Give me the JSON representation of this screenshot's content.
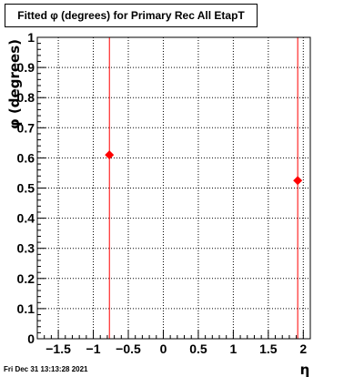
{
  "title": "Fitted φ (degrees) for Primary Rec All EtapT",
  "timestamp": "Fri Dec 31 13:13:28 2021",
  "chart_data": {
    "type": "scatter",
    "title": "Fitted φ (degrees) for Primary Rec All EtapT",
    "xlabel": "η",
    "ylabel": "φ (degrees)",
    "xlim": [
      -1.8,
      2.1
    ],
    "ylim": [
      0,
      1
    ],
    "xticks": [
      -1.5,
      -1,
      -0.5,
      0,
      0.5,
      1,
      1.5,
      2
    ],
    "xtick_labels": [
      "−1.5",
      "−1",
      "−0.5",
      "0",
      "0.5",
      "1",
      "1.5",
      "2"
    ],
    "yticks": [
      0,
      0.1,
      0.2,
      0.3,
      0.4,
      0.5,
      0.6,
      0.7,
      0.8,
      0.9,
      1
    ],
    "ytick_labels": [
      "0",
      "0.1",
      "0.2",
      "0.3",
      "0.4",
      "0.5",
      "0.6",
      "0.7",
      "0.8",
      "0.9",
      "1"
    ],
    "grid": true,
    "points": [
      {
        "x": -0.77,
        "y": 0.61
      },
      {
        "x": 1.92,
        "y": 0.525
      }
    ],
    "marker_color": "#ff0000",
    "line_color": "#ff0000"
  }
}
